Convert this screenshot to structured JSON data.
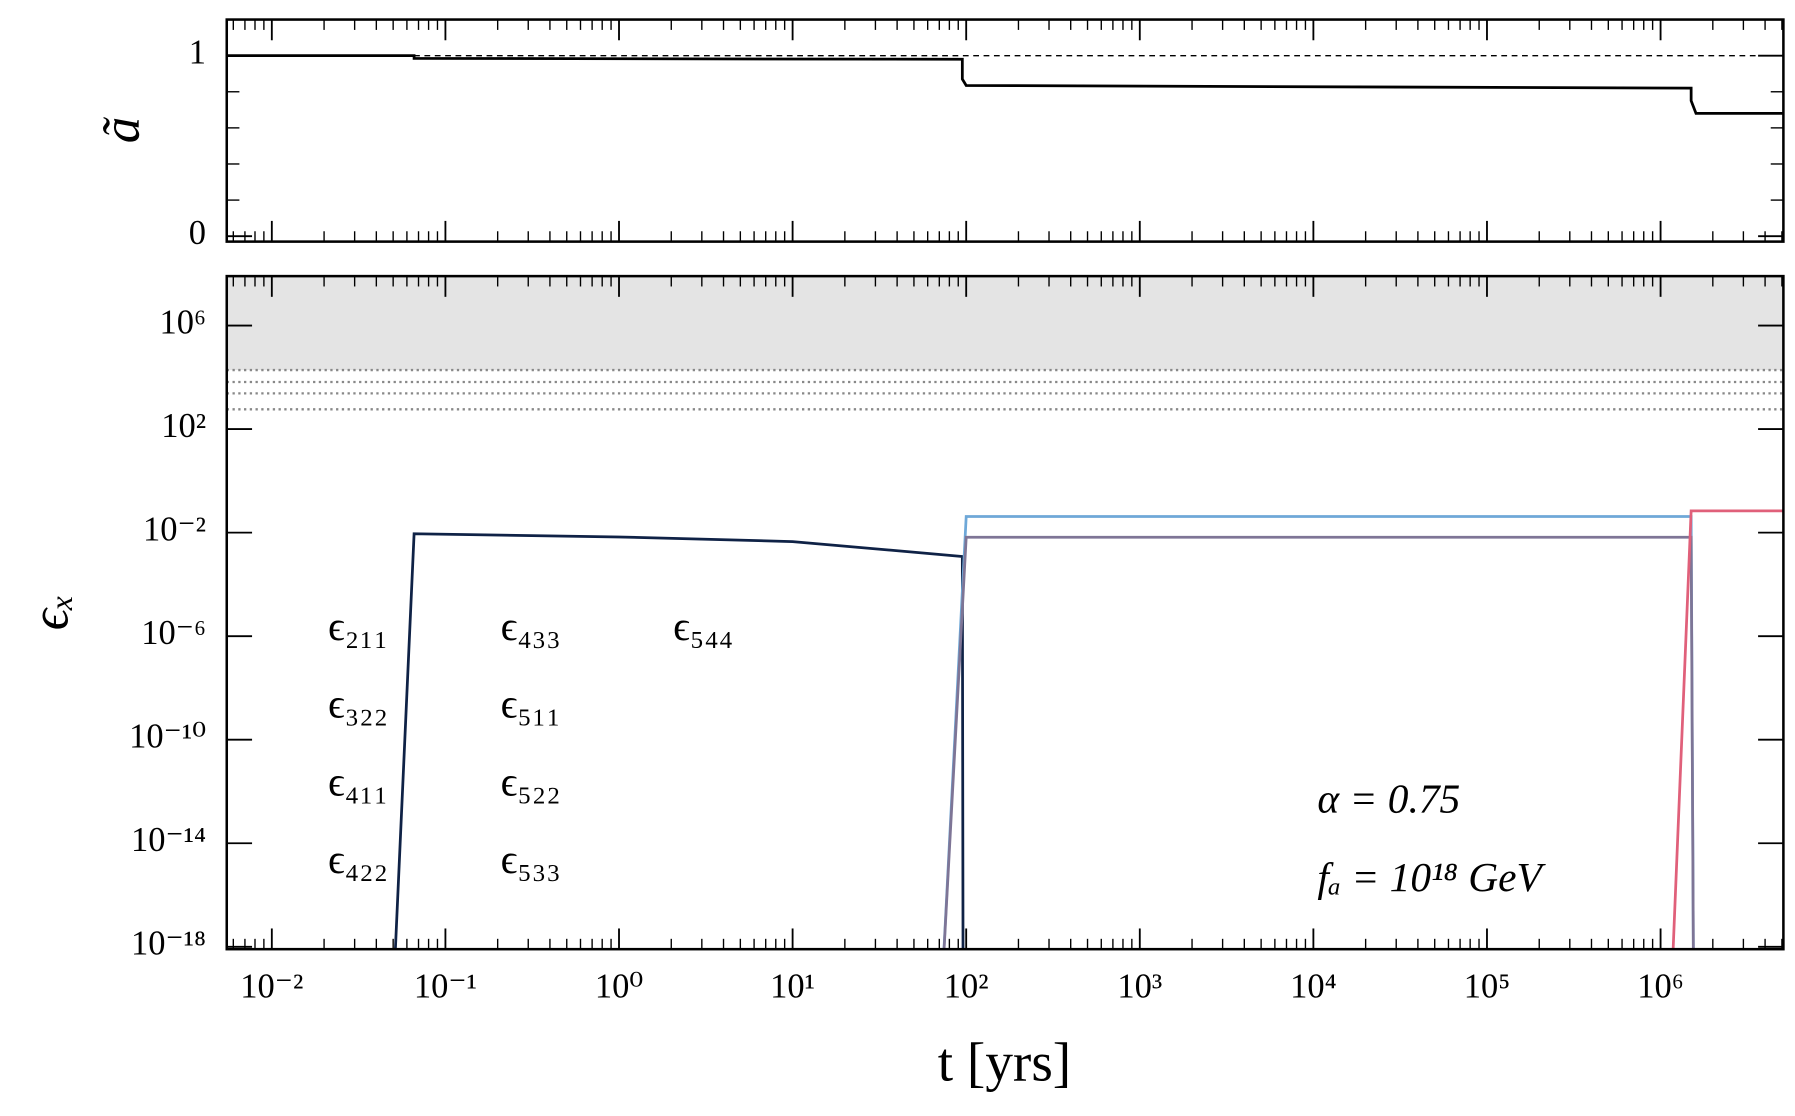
{
  "chart_data": [
    {
      "type": "line",
      "ylabel": "ã",
      "xscale": "log",
      "sharex": true,
      "xlim": [
        0.0055,
        5100000
      ],
      "ylim": [
        -0.03,
        1.2
      ],
      "yticks": [
        0,
        1
      ],
      "hline": {
        "value": 1,
        "start": 0.066,
        "style": "dashed"
      },
      "series": [
        {
          "color": "#000000",
          "x": [
            0.0055,
            0.066,
            0.066,
            95,
            95,
            100,
            1500000,
            1500000,
            1600000,
            5100000
          ],
          "values": [
            1,
            1,
            0.985,
            0.98,
            0.87,
            0.835,
            0.82,
            0.75,
            0.68,
            0.68
          ]
        }
      ]
    },
    {
      "type": "line",
      "xlabel": "t [yrs]",
      "ylabel": "ϵₓ",
      "xscale": "log",
      "yscale": "log",
      "xlim": [
        0.0055,
        5100000
      ],
      "ylim": [
        8.1e-19,
        81000000.0
      ],
      "xticks": [
        {
          "value": 0.01,
          "label": "10⁻²"
        },
        {
          "value": 0.1,
          "label": "10⁻¹"
        },
        {
          "value": 1,
          "label": "10⁰"
        },
        {
          "value": 10,
          "label": "10¹"
        },
        {
          "value": 100,
          "label": "10²"
        },
        {
          "value": 1000,
          "label": "10³"
        },
        {
          "value": 10000,
          "label": "10⁴"
        },
        {
          "value": 100000,
          "label": "10⁵"
        },
        {
          "value": 1000000,
          "label": "10⁶"
        }
      ],
      "yticks": [
        {
          "value": 1e-18,
          "label": "10⁻¹⁸"
        },
        {
          "value": 1e-14,
          "label": "10⁻¹⁴"
        },
        {
          "value": 1e-10,
          "label": "10⁻¹⁰"
        },
        {
          "value": 1e-06,
          "label": "10⁻⁶"
        },
        {
          "value": 0.01,
          "label": "10⁻²"
        },
        {
          "value": 100,
          "label": "10²"
        },
        {
          "value": 1000000,
          "label": "10⁶"
        }
      ],
      "shaded_above": 19000,
      "shade_color": "#e4e4e4",
      "reference_lines": [
        19000,
        6600,
        2400,
        580
      ],
      "annotations": [
        "α = 0.75",
        "fₐ = 10¹⁸ GeV"
      ],
      "series": [
        {
          "name": "ϵ₂₁₁",
          "color": "#7a2a2a",
          "x": [],
          "values": []
        },
        {
          "name": "ϵ₃₂₂",
          "color": "#0f2246",
          "x": [
            0.05,
            0.066,
            1,
            10,
            95,
            96
          ],
          "values": [
            1e-20,
            0.009,
            0.0068,
            0.0045,
            0.0012,
            1e-20
          ]
        },
        {
          "name": "ϵ₄₁₁",
          "color": "#13a07a",
          "x": [],
          "values": []
        },
        {
          "name": "ϵ₄₂₂",
          "color": "#a88a4e",
          "x": [],
          "values": []
        },
        {
          "name": "ϵ₄₃₃",
          "color": "#6ea8d8",
          "x": [
            72,
            100,
            1500000,
            1550000
          ],
          "values": [
            1e-20,
            0.042,
            0.042,
            1e-20
          ]
        },
        {
          "name": "ϵ₅₁₁",
          "color": "#3e4a26",
          "x": [],
          "values": []
        },
        {
          "name": "ϵ₅₂₂",
          "color": "#eea884",
          "x": [],
          "values": []
        },
        {
          "name": "ϵ₅₃₃",
          "color": "#7e7596",
          "x": [
            72,
            100,
            1500000,
            1550000
          ],
          "values": [
            1e-20,
            0.0066,
            0.0066,
            1e-20
          ]
        },
        {
          "name": "ϵ₅₄₄",
          "color": "#e0607a",
          "x": [
            1150000,
            1500000,
            5100000
          ],
          "values": [
            1e-20,
            0.069,
            0.069
          ]
        }
      ]
    }
  ]
}
